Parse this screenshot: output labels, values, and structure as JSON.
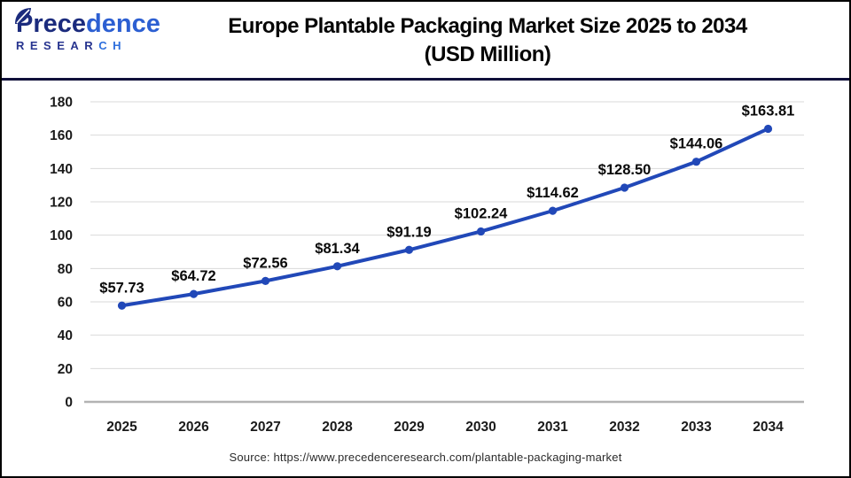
{
  "header": {
    "logo": {
      "word_main_a": "Prece",
      "word_main_b": "dence",
      "word_sub_a": "RESEAR",
      "word_sub_b": "CH"
    },
    "title_line1": "Europe Plantable Packaging Market Size 2025 to 2034",
    "title_line2": "(USD Million)"
  },
  "chart_data": {
    "type": "line",
    "title": "Europe Plantable Packaging Market Size 2025 to 2034 (USD Million)",
    "categories": [
      "2025",
      "2026",
      "2027",
      "2028",
      "2029",
      "2030",
      "2031",
      "2032",
      "2033",
      "2034"
    ],
    "values": [
      57.73,
      64.72,
      72.56,
      81.34,
      91.19,
      102.24,
      114.62,
      128.5,
      144.06,
      163.81
    ],
    "point_labels": [
      "$57.73",
      "$64.72",
      "$72.56",
      "$81.34",
      "$91.19",
      "$102.24",
      "$114.62",
      "$128.50",
      "$144.06",
      "$163.81"
    ],
    "ytick_labels": [
      "0",
      "20",
      "40",
      "60",
      "80",
      "100",
      "120",
      "140",
      "160",
      "180"
    ],
    "ylim": [
      0,
      180
    ],
    "ytick_step": 20,
    "xlabel": "",
    "ylabel": "",
    "grid": true,
    "legend": "none",
    "line_color": "#2148b8",
    "marker_color": "#2148b8",
    "grid_color": "#d9d9d9",
    "axis_color": "#b3b3b3",
    "tick_label_color": "#1a1a1a",
    "data_label_color": "#0a0a0a"
  },
  "footer": {
    "source": "Source: https://www.precedenceresearch.com/plantable-packaging-market"
  }
}
